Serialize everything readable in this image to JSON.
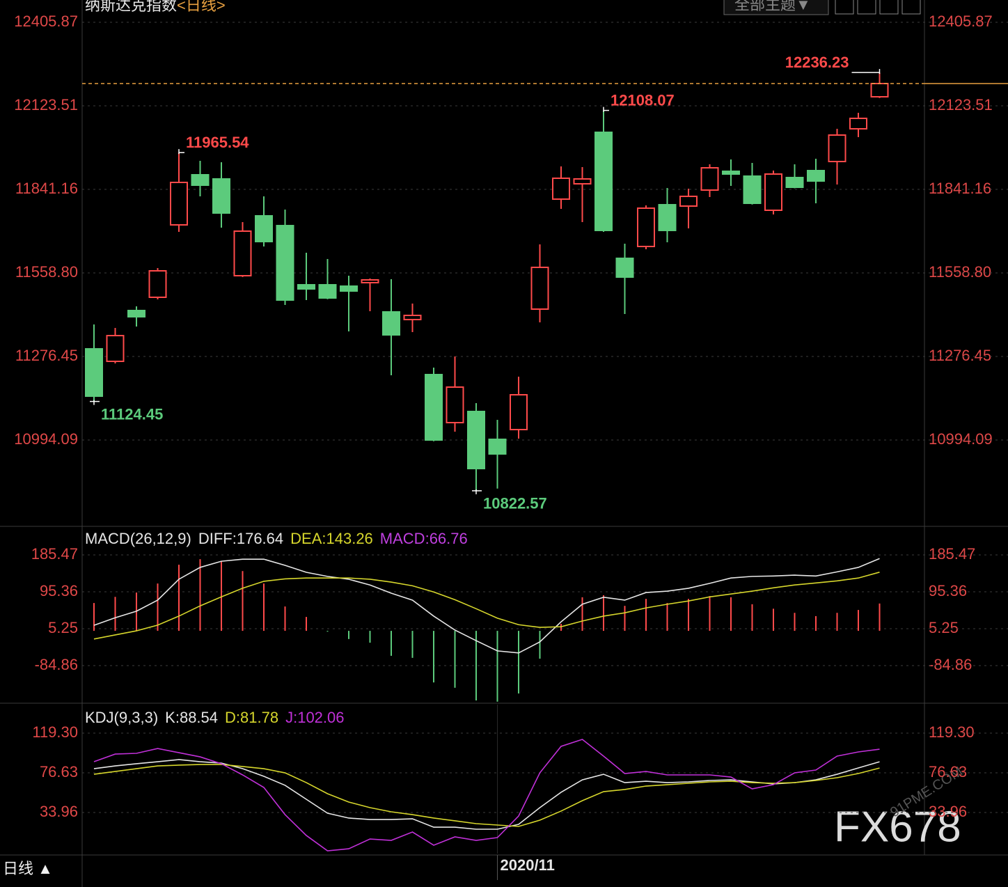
{
  "header": {
    "title": "纳斯达克指数",
    "period": "<日线>",
    "theme_button": "全部主题▼"
  },
  "footer": {
    "period_label": "日线 ▲"
  },
  "watermarks": [
    "FX678",
    "91PME.COM"
  ],
  "chart_data": [
    {
      "type": "candlestick",
      "categories": [
        null,
        null,
        null,
        null,
        null,
        null,
        null,
        null,
        null,
        null,
        null,
        null,
        null,
        null,
        null,
        null,
        null,
        null,
        null,
        "2020/11",
        null,
        null,
        null,
        null,
        null,
        null,
        null,
        null,
        null,
        null,
        null,
        null,
        null,
        null,
        null,
        null,
        null,
        null
      ],
      "open": [
        11302.3,
        11260.0,
        11431.8,
        11476.5,
        11721.2,
        11890.6,
        11876.5,
        11549.4,
        11751.8,
        11718.8,
        11518.8,
        11518.8,
        11514.1,
        11525.9,
        11427.1,
        11401.2,
        11215.3,
        11052.9,
        11090.6,
        10996.5,
        11029.4,
        11436.5,
        11808.2,
        11860.0,
        12034.1,
        11608.2,
        11648.2,
        11789.4,
        11784.7,
        11838.8,
        11902.4,
        11885.9,
        11770.6,
        11881.2,
        11904.7,
        11935.3,
        12045.9,
        12154.1
      ],
      "high": [
        11384.7,
        11372.9,
        11445.9,
        11575.3,
        11965.54,
        11937.7,
        11932.9,
        11730.6,
        11817.6,
        11772.9,
        11627.1,
        11605.9,
        11549.4,
        11540.0,
        11537.6,
        11455.3,
        11238.8,
        11276.5,
        11118.8,
        11062.3,
        11208.2,
        11655.3,
        11918.8,
        11916.5,
        12108.07,
        11657.6,
        11787.1,
        11845.9,
        11843.5,
        11925.9,
        11942.4,
        11930.6,
        11904.7,
        11925.9,
        11944.7,
        12045.9,
        12100.0,
        12236.23
      ],
      "low": [
        11124.45,
        11252.9,
        11377.6,
        11469.4,
        11697.6,
        11817.6,
        11711.8,
        11545.0,
        11648.2,
        11450.6,
        11467.1,
        11470.0,
        11361.2,
        11429.4,
        11212.9,
        11358.8,
        10990.0,
        11022.3,
        10822.57,
        10830.0,
        10998.8,
        11391.8,
        11775.3,
        11730.6,
        11697.6,
        11420.0,
        11638.8,
        11662.4,
        11709.4,
        11815.3,
        11852.9,
        11790.0,
        11756.5,
        11845.0,
        11794.1,
        11857.6,
        12017.7,
        12150.0
      ],
      "close": [
        11142.3,
        11347.0,
        11410.6,
        11565.9,
        11864.7,
        11855.3,
        11761.2,
        11700.0,
        11664.7,
        11467.1,
        11504.7,
        11474.1,
        11497.6,
        11535.3,
        11349.4,
        11415.3,
        10994.1,
        11172.9,
        10897.6,
        10947.0,
        11147.0,
        11577.6,
        11878.8,
        11876.5,
        11702.4,
        11544.7,
        11777.6,
        11702.4,
        11817.6,
        11914.1,
        11892.9,
        11794.1,
        11892.9,
        11848.2,
        11869.4,
        12024.7,
        12081.2,
        12198.8
      ],
      "up_color": "#ff4a4a",
      "down_color": "#5ccb7c",
      "last_price_color": "#e8a040",
      "ylim": [
        10704.7,
        12481.2
      ],
      "yticks": [
        12405.87,
        12123.51,
        11841.16,
        {
          "value": 11558.8,
          "label": "11558.80"
        },
        11276.45,
        10994.09
      ],
      "grid": true
    },
    {
      "type": "macd",
      "title": "MACD(26,12,9)",
      "up_color": "#ff4a4a",
      "down_color": "#5ccb7c",
      "series": [
        {
          "name": "DIFF:",
          "color": "#e6e6e6",
          "values": [
            13.6,
            32,
            48,
            75,
            126,
            155,
            170,
            175,
            175,
            160,
            143,
            133,
            126,
            112,
            92,
            75,
            36,
            2,
            -24,
            -49,
            -54,
            -27,
            22,
            65,
            82,
            75,
            93.5,
            97,
            104,
            116,
            129,
            133,
            134,
            136,
            134,
            144,
            155,
            176.64
          ]
        },
        {
          "name": "DEA:",
          "color": "#d6d62c",
          "values": [
            -20,
            -10,
            0,
            14,
            36,
            61,
            83,
            104,
            121,
            127,
            129,
            129,
            129,
            126,
            119,
            110,
            95,
            76,
            54,
            31,
            15,
            8.5,
            10,
            24,
            36,
            44,
            56,
            65,
            73,
            83,
            90,
            97,
            105,
            112,
            117,
            122,
            129,
            143.26
          ]
        },
        {
          "name": "MACD:",
          "type": "bar",
          "color": "#c040e0",
          "values": [
            68,
            83,
            93.5,
            115.6,
            161.5,
            175,
            170,
            146,
            115.6,
            59.5,
            34,
            -2,
            -20,
            -29,
            -61,
            -66,
            -126,
            -139,
            -170,
            -173,
            -153,
            -68,
            17,
            82,
            87,
            61,
            78,
            68,
            78,
            85,
            82,
            65,
            54,
            44,
            36,
            44,
            51,
            66.76
          ]
        }
      ],
      "ylim": [
        -173.3,
        253.5
      ],
      "yticks": [
        185.47,
        95.36,
        5.25,
        -84.86
      ],
      "grid": true
    },
    {
      "type": "line",
      "title": "KDJ(9,3,3)",
      "series": [
        {
          "name": "K:",
          "color": "#e6e6e6",
          "values": [
            81.1,
            84.1,
            86.4,
            88.6,
            90.9,
            88.6,
            87.1,
            81.1,
            72.9,
            63.2,
            48.2,
            33.2,
            28,
            26.4,
            26.4,
            27.2,
            18.2,
            18.2,
            16,
            16,
            21.2,
            39.2,
            55.7,
            69.1,
            75.1,
            66.1,
            67.6,
            66.1,
            66.9,
            68.4,
            69.1,
            66.9,
            64.7,
            66.1,
            69.1,
            75.1,
            81.9,
            88.54
          ]
        },
        {
          "name": "D:",
          "color": "#d6d62c",
          "values": [
            75.1,
            78.1,
            81.1,
            84.1,
            84.9,
            85.6,
            85.6,
            83.4,
            81.1,
            76.6,
            66.1,
            54.2,
            45.2,
            39.2,
            34.7,
            31.7,
            28,
            25,
            22,
            20.5,
            19,
            25.7,
            35.5,
            46.7,
            56.4,
            58.7,
            62.4,
            63.9,
            65.4,
            66.9,
            67.6,
            66.1,
            65.4,
            66.1,
            68.4,
            71.4,
            75.9,
            81.78
          ]
        },
        {
          "name": "J:",
          "color": "#c030d8",
          "values": [
            88.6,
            96.8,
            97.6,
            102.8,
            98.3,
            93.8,
            86.4,
            74.4,
            60.9,
            31.7,
            9.3,
            -7.2,
            -5,
            5.5,
            4,
            13,
            -1.2,
            7.8,
            4,
            7,
            30.2,
            76.6,
            105.1,
            112.6,
            94.6,
            75.9,
            78.1,
            74.4,
            74.4,
            74.4,
            72.1,
            59.4,
            63.9,
            76.6,
            79.6,
            94.6,
            99.1,
            102.06
          ]
        }
      ],
      "ylim": [
        -10.2,
        150.0
      ],
      "yticks": [
        {
          "value": 119.3,
          "label": "119.30"
        },
        76.63,
        33.96
      ],
      "grid": true
    }
  ]
}
